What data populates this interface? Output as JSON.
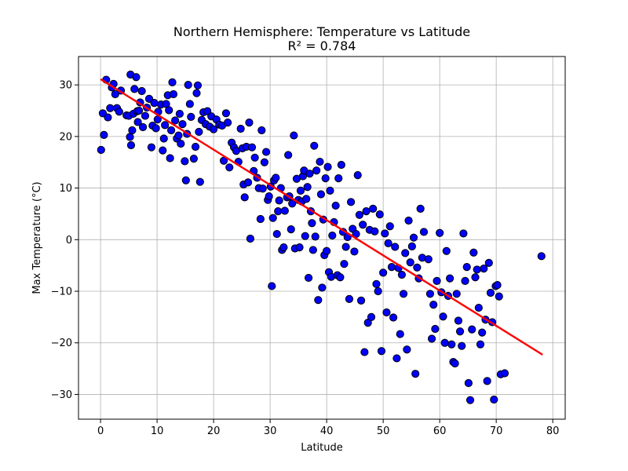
{
  "chart_data": {
    "type": "scatter",
    "title": "Northern Hemisphere: Temperature vs Latitude",
    "subtitle": "R² = 0.784",
    "xlabel": "Latitude",
    "ylabel": "Max Temperature (°C)",
    "xlim": [
      -3.9,
      82.2
    ],
    "ylim": [
      -34.8,
      35.5
    ],
    "xticks": [
      0,
      10,
      20,
      30,
      40,
      50,
      60,
      70,
      80
    ],
    "yticks": [
      -30,
      -20,
      -10,
      0,
      10,
      20,
      30
    ],
    "xtick_labels": [
      "0",
      "10",
      "20",
      "30",
      "40",
      "50",
      "60",
      "70",
      "80"
    ],
    "ytick_labels": [
      "−30",
      "−20",
      "−10",
      "0",
      "10",
      "20",
      "30"
    ],
    "grid": true,
    "point_color": "#0000ff",
    "point_edge_color": "#000000",
    "regression_color": "#ff0000",
    "regression": {
      "x1": 0.0,
      "y1": 31.1,
      "x2": 78.2,
      "y2": -22.3
    },
    "points": [
      [
        0.1,
        17.4
      ],
      [
        0.4,
        24.5
      ],
      [
        0.6,
        20.3
      ],
      [
        1.0,
        31.0
      ],
      [
        1.3,
        23.7
      ],
      [
        1.7,
        25.5
      ],
      [
        2.0,
        29.5
      ],
      [
        2.3,
        30.2
      ],
      [
        2.6,
        28.2
      ],
      [
        2.9,
        25.5
      ],
      [
        3.3,
        24.8
      ],
      [
        3.6,
        28.9
      ],
      [
        4.6,
        24.1
      ],
      [
        5.0,
        24.0
      ],
      [
        5.2,
        19.9
      ],
      [
        5.3,
        32.0
      ],
      [
        5.4,
        18.3
      ],
      [
        5.6,
        21.2
      ],
      [
        5.8,
        24.4
      ],
      [
        6.0,
        29.2
      ],
      [
        6.3,
        31.5
      ],
      [
        6.5,
        24.9
      ],
      [
        6.6,
        22.8
      ],
      [
        6.8,
        25.0
      ],
      [
        7.0,
        26.6
      ],
      [
        7.3,
        28.8
      ],
      [
        7.5,
        21.8
      ],
      [
        7.9,
        24.0
      ],
      [
        8.2,
        25.6
      ],
      [
        8.6,
        27.3
      ],
      [
        9.0,
        17.9
      ],
      [
        9.2,
        22.1
      ],
      [
        9.5,
        26.5
      ],
      [
        9.8,
        21.6
      ],
      [
        10.1,
        23.3
      ],
      [
        10.2,
        24.8
      ],
      [
        10.7,
        26.2
      ],
      [
        11.0,
        17.3
      ],
      [
        11.2,
        19.6
      ],
      [
        11.4,
        22.2
      ],
      [
        11.6,
        26.3
      ],
      [
        11.9,
        28.0
      ],
      [
        12.1,
        25.1
      ],
      [
        12.3,
        15.8
      ],
      [
        12.5,
        21.2
      ],
      [
        12.7,
        30.5
      ],
      [
        12.9,
        28.2
      ],
      [
        13.2,
        23.1
      ],
      [
        13.5,
        19.6
      ],
      [
        13.8,
        20.2
      ],
      [
        14.0,
        24.4
      ],
      [
        14.2,
        18.6
      ],
      [
        14.5,
        22.4
      ],
      [
        14.9,
        15.2
      ],
      [
        15.1,
        11.5
      ],
      [
        15.3,
        20.5
      ],
      [
        15.5,
        30.0
      ],
      [
        15.8,
        26.3
      ],
      [
        16.0,
        23.8
      ],
      [
        16.5,
        15.7
      ],
      [
        16.8,
        18.0
      ],
      [
        17.0,
        28.4
      ],
      [
        17.2,
        29.9
      ],
      [
        17.4,
        20.9
      ],
      [
        17.6,
        11.2
      ],
      [
        17.9,
        23.2
      ],
      [
        18.2,
        24.7
      ],
      [
        18.6,
        22.4
      ],
      [
        18.9,
        24.9
      ],
      [
        19.3,
        21.9
      ],
      [
        19.6,
        23.9
      ],
      [
        20.0,
        21.4
      ],
      [
        20.5,
        23.3
      ],
      [
        21.0,
        22.3
      ],
      [
        21.5,
        22.1
      ],
      [
        21.8,
        15.3
      ],
      [
        22.2,
        24.5
      ],
      [
        22.5,
        22.7
      ],
      [
        22.8,
        14.0
      ],
      [
        23.2,
        18.8
      ],
      [
        23.6,
        17.9
      ],
      [
        24.0,
        17.2
      ],
      [
        24.4,
        15.1
      ],
      [
        24.8,
        21.5
      ],
      [
        25.1,
        17.7
      ],
      [
        25.3,
        10.7
      ],
      [
        25.5,
        8.2
      ],
      [
        25.8,
        18.0
      ],
      [
        26.1,
        11.1
      ],
      [
        26.3,
        22.7
      ],
      [
        26.5,
        0.2
      ],
      [
        26.8,
        17.9
      ],
      [
        27.1,
        13.3
      ],
      [
        27.3,
        15.9
      ],
      [
        27.7,
        12.0
      ],
      [
        28.0,
        10.0
      ],
      [
        28.3,
        4.0
      ],
      [
        28.5,
        21.2
      ],
      [
        28.7,
        9.9
      ],
      [
        29.0,
        15.0
      ],
      [
        29.3,
        17.0
      ],
      [
        29.6,
        7.7
      ],
      [
        29.8,
        8.4
      ],
      [
        30.1,
        10.3
      ],
      [
        30.3,
        -9.0
      ],
      [
        30.5,
        4.2
      ],
      [
        30.7,
        11.5
      ],
      [
        31.0,
        12.0
      ],
      [
        31.2,
        1.1
      ],
      [
        31.4,
        5.5
      ],
      [
        31.6,
        7.6
      ],
      [
        31.9,
        10.0
      ],
      [
        32.1,
        -2.0
      ],
      [
        32.4,
        -1.5
      ],
      [
        32.6,
        5.6
      ],
      [
        33.0,
        8.2
      ],
      [
        33.2,
        16.4
      ],
      [
        33.4,
        8.4
      ],
      [
        33.7,
        2.0
      ],
      [
        33.9,
        7.0
      ],
      [
        34.2,
        20.2
      ],
      [
        34.4,
        -1.7
      ],
      [
        34.7,
        11.8
      ],
      [
        35.0,
        7.7
      ],
      [
        35.2,
        -1.5
      ],
      [
        35.4,
        9.5
      ],
      [
        35.6,
        7.4
      ],
      [
        35.8,
        12.3
      ],
      [
        36.0,
        13.4
      ],
      [
        36.2,
        0.7
      ],
      [
        36.4,
        7.9
      ],
      [
        36.6,
        10.2
      ],
      [
        36.8,
        -7.4
      ],
      [
        37.0,
        12.8
      ],
      [
        37.2,
        5.5
      ],
      [
        37.4,
        3.2
      ],
      [
        37.6,
        -2.0
      ],
      [
        37.8,
        18.2
      ],
      [
        38.0,
        0.6
      ],
      [
        38.2,
        13.4
      ],
      [
        38.5,
        -11.7
      ],
      [
        38.8,
        15.1
      ],
      [
        39.0,
        8.8
      ],
      [
        39.2,
        -9.3
      ],
      [
        39.4,
        3.9
      ],
      [
        39.6,
        -3.0
      ],
      [
        39.8,
        11.9
      ],
      [
        40.0,
        -2.2
      ],
      [
        40.2,
        14.1
      ],
      [
        40.4,
        -6.3
      ],
      [
        40.6,
        9.5
      ],
      [
        40.8,
        -7.2
      ],
      [
        41.0,
        0.8
      ],
      [
        41.3,
        3.4
      ],
      [
        41.6,
        6.6
      ],
      [
        41.9,
        -6.9
      ],
      [
        42.1,
        11.9
      ],
      [
        42.4,
        -7.3
      ],
      [
        42.6,
        14.5
      ],
      [
        42.9,
        1.5
      ],
      [
        43.1,
        -4.7
      ],
      [
        43.4,
        -1.4
      ],
      [
        43.7,
        0.5
      ],
      [
        44.0,
        -11.5
      ],
      [
        44.3,
        7.3
      ],
      [
        44.6,
        2.1
      ],
      [
        44.9,
        -2.3
      ],
      [
        45.2,
        1.1
      ],
      [
        45.5,
        12.5
      ],
      [
        45.8,
        4.8
      ],
      [
        46.1,
        -11.8
      ],
      [
        46.4,
        2.9
      ],
      [
        46.7,
        -21.8
      ],
      [
        47.0,
        5.5
      ],
      [
        47.3,
        -16.1
      ],
      [
        47.6,
        1.9
      ],
      [
        47.9,
        -15.0
      ],
      [
        48.2,
        6.0
      ],
      [
        48.5,
        1.6
      ],
      [
        48.8,
        -8.6
      ],
      [
        49.1,
        -10.0
      ],
      [
        49.4,
        4.9
      ],
      [
        49.7,
        -21.6
      ],
      [
        50.0,
        -6.4
      ],
      [
        50.3,
        1.2
      ],
      [
        50.6,
        -14.1
      ],
      [
        50.9,
        -0.7
      ],
      [
        51.2,
        2.6
      ],
      [
        51.5,
        -5.3
      ],
      [
        51.8,
        -15.1
      ],
      [
        52.1,
        -1.4
      ],
      [
        52.4,
        -23.0
      ],
      [
        52.7,
        -5.5
      ],
      [
        53.0,
        -18.3
      ],
      [
        53.3,
        -6.8
      ],
      [
        53.6,
        -10.5
      ],
      [
        53.9,
        -2.6
      ],
      [
        54.2,
        -21.3
      ],
      [
        54.5,
        3.7
      ],
      [
        54.8,
        -4.4
      ],
      [
        55.1,
        -1.3
      ],
      [
        55.4,
        0.4
      ],
      [
        55.7,
        -26.0
      ],
      [
        56.0,
        -5.4
      ],
      [
        56.3,
        -7.5
      ],
      [
        56.6,
        6.0
      ],
      [
        56.9,
        -3.5
      ],
      [
        57.2,
        1.5
      ],
      [
        58.0,
        -3.8
      ],
      [
        58.3,
        -10.5
      ],
      [
        58.6,
        -19.2
      ],
      [
        58.9,
        -12.6
      ],
      [
        59.2,
        -17.3
      ],
      [
        59.5,
        -8.0
      ],
      [
        60.0,
        1.3
      ],
      [
        60.3,
        -10.2
      ],
      [
        60.6,
        -14.9
      ],
      [
        60.9,
        -20.0
      ],
      [
        61.2,
        -2.2
      ],
      [
        61.5,
        -10.9
      ],
      [
        61.8,
        -7.5
      ],
      [
        62.1,
        -20.3
      ],
      [
        62.4,
        -23.7
      ],
      [
        62.7,
        -24.0
      ],
      [
        63.0,
        -10.5
      ],
      [
        63.3,
        -15.7
      ],
      [
        63.6,
        -17.8
      ],
      [
        63.9,
        -20.6
      ],
      [
        64.2,
        1.2
      ],
      [
        64.5,
        -8.0
      ],
      [
        64.8,
        -5.3
      ],
      [
        65.1,
        -27.8
      ],
      [
        65.4,
        -31.1
      ],
      [
        65.7,
        -17.4
      ],
      [
        66.0,
        -2.5
      ],
      [
        66.3,
        -7.3
      ],
      [
        66.6,
        -5.8
      ],
      [
        66.9,
        -13.2
      ],
      [
        67.2,
        -20.3
      ],
      [
        67.5,
        -18.0
      ],
      [
        67.8,
        -5.6
      ],
      [
        68.1,
        -15.5
      ],
      [
        68.4,
        -27.4
      ],
      [
        68.7,
        -4.5
      ],
      [
        69.0,
        -10.3
      ],
      [
        69.3,
        -16.0
      ],
      [
        69.6,
        -31.0
      ],
      [
        69.9,
        -9.0
      ],
      [
        70.2,
        -8.8
      ],
      [
        70.5,
        -11.0
      ],
      [
        70.8,
        -26.1
      ],
      [
        71.5,
        -25.9
      ],
      [
        78.0,
        -3.2
      ]
    ]
  }
}
